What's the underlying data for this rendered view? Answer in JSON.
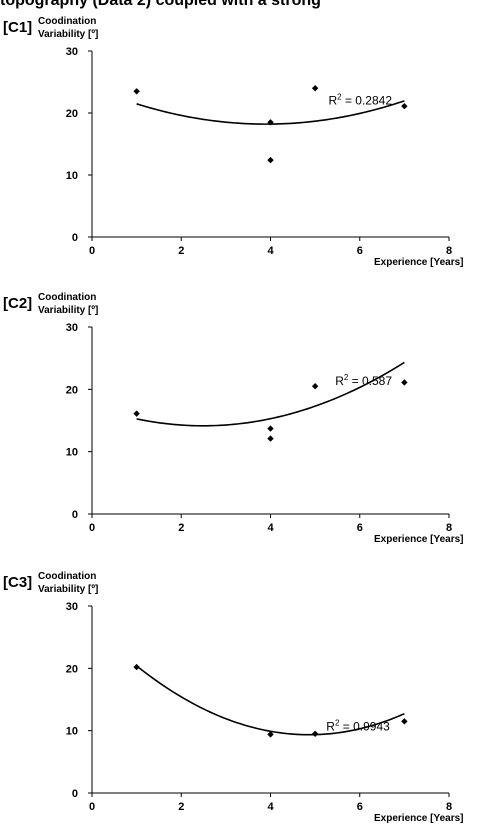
{
  "page": {
    "title": "topography (Data 2) coupled with a strong"
  },
  "chart_data": [
    {
      "type": "scatter",
      "panel_label": "[C1]",
      "ylabel": [
        "Coodination",
        "Variability [º]"
      ],
      "xlabel": "Experience [Years]",
      "xlim": [
        0,
        8
      ],
      "ylim": [
        0,
        30
      ],
      "xticks": [
        0,
        2,
        4,
        6,
        8
      ],
      "yticks": [
        0,
        10,
        20,
        30
      ],
      "grid": false,
      "points": [
        {
          "x": 1,
          "y": 23.5
        },
        {
          "x": 4,
          "y": 18.5
        },
        {
          "x": 4,
          "y": 12.4
        },
        {
          "x": 5,
          "y": 24
        },
        {
          "x": 7,
          "y": 21.1
        }
      ],
      "trendline": {
        "type": "polynomial",
        "order": 2,
        "coef": [
          24.13,
          -3.04,
          0.39
        ],
        "x_range": [
          1,
          7
        ]
      },
      "annotation": {
        "prefix": "R",
        "sup": "2",
        "text": " = 0.2842",
        "x": 5.3,
        "y": 22
      }
    },
    {
      "type": "scatter",
      "panel_label": "[C2]",
      "ylabel": [
        "Coodination",
        "Variability [º]"
      ],
      "xlabel": "Experience [Years]",
      "xlim": [
        0,
        8
      ],
      "ylim": [
        0,
        30
      ],
      "xticks": [
        0,
        2,
        4,
        6,
        8
      ],
      "yticks": [
        0,
        10,
        20,
        30
      ],
      "grid": false,
      "points": [
        {
          "x": 1,
          "y": 16.1
        },
        {
          "x": 4,
          "y": 13.7
        },
        {
          "x": 4,
          "y": 12.1
        },
        {
          "x": 5,
          "y": 20.5
        },
        {
          "x": 7,
          "y": 21.1
        }
      ],
      "trendline": {
        "type": "polynomial",
        "order": 2,
        "coef": [
          17.25,
          -2.49,
          0.5
        ],
        "x_range": [
          1,
          7
        ]
      },
      "annotation": {
        "prefix": "R",
        "sup": "2",
        "text": " = 0.587",
        "x": 5.45,
        "y": 21.3
      }
    },
    {
      "type": "scatter",
      "panel_label": "[C3]",
      "ylabel": [
        "Coodination",
        "Variability [º]"
      ],
      "xlabel": "Experience [Years]",
      "xlim": [
        0,
        8
      ],
      "ylim": [
        0,
        30
      ],
      "xticks": [
        0,
        2,
        4,
        6,
        8
      ],
      "yticks": [
        0,
        10,
        20,
        30
      ],
      "grid": false,
      "points": [
        {
          "x": 1,
          "y": 20.2
        },
        {
          "x": 4,
          "y": 9.4
        },
        {
          "x": 5,
          "y": 9.5
        },
        {
          "x": 7,
          "y": 11.5
        }
      ],
      "trendline": {
        "type": "polynomial",
        "order": 2,
        "coef": [
          26.86,
          -7.2,
          0.74
        ],
        "x_range": [
          1,
          7
        ]
      },
      "annotation": {
        "prefix": "R",
        "sup": "2",
        "text": " = 0.9943",
        "x": 5.25,
        "y": 10.7
      }
    }
  ]
}
